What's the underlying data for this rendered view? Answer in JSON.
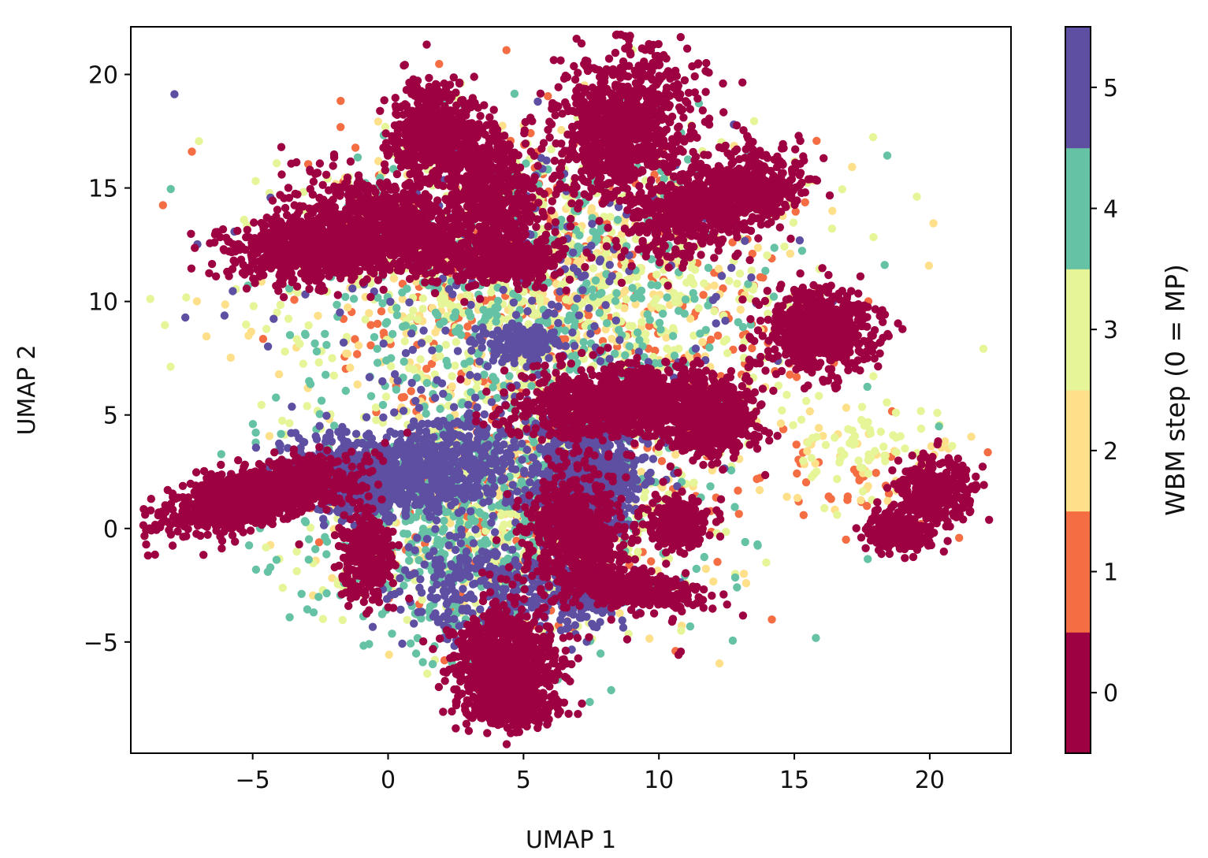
{
  "chart_data": {
    "type": "scatter",
    "title": "",
    "xlabel": "UMAP 1",
    "ylabel": "UMAP 2",
    "xlim": [
      -9.5,
      23
    ],
    "ylim": [
      -9.9,
      22.1
    ],
    "xticks": [
      -5,
      0,
      5,
      10,
      15,
      20
    ],
    "yticks": [
      -5,
      0,
      5,
      10,
      15,
      20
    ],
    "xtick_labels": [
      "−5",
      "0",
      "5",
      "10",
      "15",
      "20"
    ],
    "ytick_labels": [
      "−5",
      "0",
      "5",
      "10",
      "15",
      "20"
    ],
    "grid": false,
    "legend": "none",
    "colorbar": {
      "label": "WBM step (0 = MP)",
      "orientation": "vertical",
      "position": "right",
      "ticks": [
        0,
        1,
        2,
        3,
        4,
        5
      ],
      "tick_labels": [
        "0",
        "1",
        "2",
        "3",
        "4",
        "5"
      ],
      "range": [
        -0.5,
        5.5
      ],
      "colors": [
        "#9e0142",
        "#f46d43",
        "#fee08b",
        "#e6f598",
        "#66c2a5",
        "#5e4fa2"
      ]
    },
    "note_series": "point clouds grouped by WBM step; clusters given as approximate centers and spreads in data units",
    "series": [
      {
        "step": 0,
        "clusters": [
          {
            "cx": -4.9,
            "cy": 1.4,
            "sx": 1.6,
            "sy": 0.55,
            "n": 1400,
            "rot": 0.28
          },
          {
            "cx": -2.8,
            "cy": 12.2,
            "sx": 1.6,
            "sy": 0.7,
            "n": 700,
            "rot": 0.0
          },
          {
            "cx": 0.5,
            "cy": 13.3,
            "sx": 1.9,
            "sy": 0.9,
            "n": 900,
            "rot": -0.35
          },
          {
            "cx": 1.4,
            "cy": 17.5,
            "sx": 0.7,
            "sy": 1.0,
            "n": 450,
            "rot": 0.0
          },
          {
            "cx": 3.6,
            "cy": 15.5,
            "sx": 0.8,
            "sy": 1.8,
            "n": 650,
            "rot": 0.4
          },
          {
            "cx": 4.5,
            "cy": 11.8,
            "sx": 0.9,
            "sy": 0.5,
            "n": 300,
            "rot": 0.0
          },
          {
            "cx": 8.7,
            "cy": 17.8,
            "sx": 1.2,
            "sy": 1.7,
            "n": 900,
            "rot": -0.4
          },
          {
            "cx": 11.6,
            "cy": 14.2,
            "sx": 1.5,
            "sy": 0.9,
            "n": 650,
            "rot": 0.5
          },
          {
            "cx": 13.5,
            "cy": 15.0,
            "sx": 1.0,
            "sy": 0.7,
            "n": 300,
            "rot": 0.4
          },
          {
            "cx": 16.0,
            "cy": 8.7,
            "sx": 1.0,
            "sy": 0.9,
            "n": 700,
            "rot": 0.0
          },
          {
            "cx": 8.2,
            "cy": 5.6,
            "sx": 1.8,
            "sy": 0.8,
            "n": 900,
            "rot": 0.1
          },
          {
            "cx": 11.8,
            "cy": 4.9,
            "sx": 1.0,
            "sy": 0.9,
            "n": 550,
            "rot": 0.0
          },
          {
            "cx": 7.0,
            "cy": -0.3,
            "sx": 0.9,
            "sy": 1.4,
            "n": 650,
            "rot": 0.0
          },
          {
            "cx": 9.2,
            "cy": -2.7,
            "sx": 1.2,
            "sy": 0.4,
            "n": 350,
            "rot": -0.2
          },
          {
            "cx": 10.7,
            "cy": 0.2,
            "sx": 0.6,
            "sy": 0.6,
            "n": 250,
            "rot": 0.0
          },
          {
            "cx": 4.3,
            "cy": -5.8,
            "sx": 1.0,
            "sy": 1.2,
            "n": 750,
            "rot": 0.0
          },
          {
            "cx": 4.5,
            "cy": -7.8,
            "sx": 0.8,
            "sy": 0.5,
            "n": 300,
            "rot": 0.0
          },
          {
            "cx": -0.8,
            "cy": -1.0,
            "sx": 0.5,
            "sy": 1.1,
            "n": 300,
            "rot": 0.0
          },
          {
            "cx": 20.2,
            "cy": 1.6,
            "sx": 0.7,
            "sy": 0.7,
            "n": 350,
            "rot": 0.0
          },
          {
            "cx": 18.8,
            "cy": -0.2,
            "sx": 0.6,
            "sy": 0.4,
            "n": 250,
            "rot": 0.0
          },
          {
            "cx": 10.8,
            "cy": -5.5,
            "sx": 0.05,
            "sy": 0.05,
            "n": 2,
            "rot": 0.0
          }
        ]
      },
      {
        "step": 1,
        "clusters": [
          {
            "cx": 6.0,
            "cy": 10.5,
            "sx": 4.5,
            "sy": 3.2,
            "n": 380,
            "rot": 0.0
          },
          {
            "cx": 4.5,
            "cy": 1.2,
            "sx": 3.6,
            "sy": 2.8,
            "n": 220,
            "rot": 0.0
          },
          {
            "cx": 17.0,
            "cy": 2.0,
            "sx": 2.2,
            "sy": 1.0,
            "n": 40,
            "rot": 0.0
          }
        ]
      },
      {
        "step": 2,
        "clusters": [
          {
            "cx": 6.0,
            "cy": 10.5,
            "sx": 4.5,
            "sy": 3.2,
            "n": 360,
            "rot": 0.0
          },
          {
            "cx": 4.5,
            "cy": 1.2,
            "sx": 3.6,
            "sy": 2.8,
            "n": 200,
            "rot": 0.0
          },
          {
            "cx": 17.5,
            "cy": 3.0,
            "sx": 2.0,
            "sy": 1.0,
            "n": 40,
            "rot": 0.0
          }
        ]
      },
      {
        "step": 3,
        "clusters": [
          {
            "cx": 6.0,
            "cy": 11.0,
            "sx": 4.8,
            "sy": 3.4,
            "n": 650,
            "rot": 0.0
          },
          {
            "cx": 4.5,
            "cy": 1.0,
            "sx": 3.8,
            "sy": 2.9,
            "n": 420,
            "rot": 0.0
          },
          {
            "cx": 17.6,
            "cy": 4.0,
            "sx": 1.6,
            "sy": 1.1,
            "n": 60,
            "rot": 0.0
          }
        ]
      },
      {
        "step": 4,
        "clusters": [
          {
            "cx": 5.5,
            "cy": 10.5,
            "sx": 4.4,
            "sy": 3.2,
            "n": 420,
            "rot": 0.0
          },
          {
            "cx": 3.5,
            "cy": 0.5,
            "sx": 3.6,
            "sy": 2.9,
            "n": 650,
            "rot": 0.0
          }
        ]
      },
      {
        "step": 5,
        "clusters": [
          {
            "cx": -0.8,
            "cy": 2.3,
            "sx": 1.6,
            "sy": 0.9,
            "n": 650,
            "rot": 0.0
          },
          {
            "cx": 2.3,
            "cy": 2.9,
            "sx": 1.4,
            "sy": 1.2,
            "n": 400,
            "rot": 0.0
          },
          {
            "cx": 7.3,
            "cy": 2.4,
            "sx": 1.1,
            "sy": 1.4,
            "n": 650,
            "rot": 0.0
          },
          {
            "cx": 3.5,
            "cy": -2.5,
            "sx": 1.8,
            "sy": 1.2,
            "n": 260,
            "rot": 0.0
          },
          {
            "cx": 5.0,
            "cy": 10.5,
            "sx": 4.2,
            "sy": 3.2,
            "n": 240,
            "rot": 0.0
          },
          {
            "cx": 4.9,
            "cy": 8.2,
            "sx": 0.7,
            "sy": 0.4,
            "n": 140,
            "rot": 0.0
          },
          {
            "cx": 7.1,
            "cy": -3.0,
            "sx": 1.2,
            "sy": 0.8,
            "n": 150,
            "rot": 0.0
          }
        ]
      }
    ]
  }
}
